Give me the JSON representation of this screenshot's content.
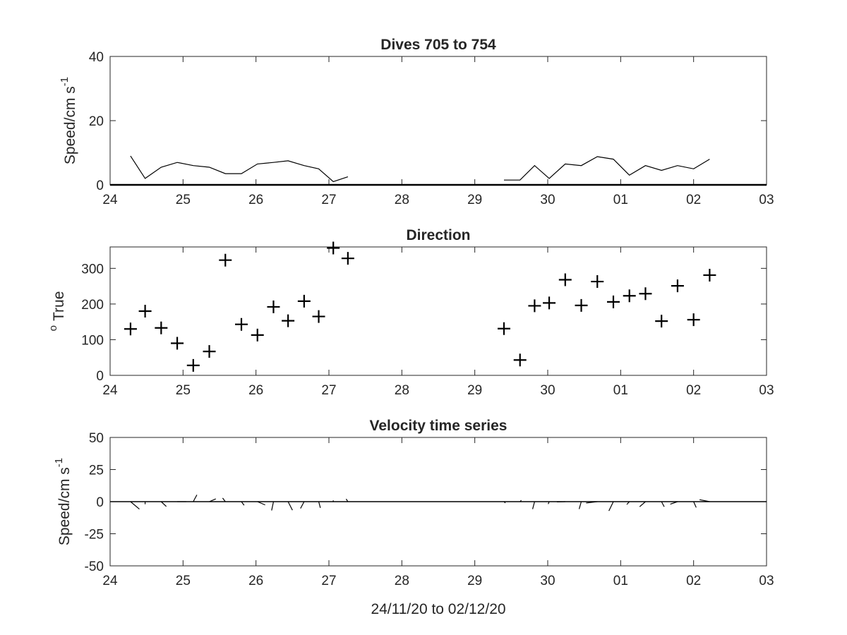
{
  "chart_data": [
    {
      "type": "line",
      "title": "Dives 705 to 754",
      "ylabel": "Speed/cm s",
      "ylabel_superscript": "-1",
      "xlim": [
        24,
        33
      ],
      "ylim": [
        0,
        40
      ],
      "xtick_labels": [
        "24",
        "25",
        "26",
        "27",
        "28",
        "29",
        "30",
        "01",
        "02",
        "03"
      ],
      "ytick_labels": [
        "0",
        "20",
        "40"
      ],
      "segments": [
        {
          "x": [
            24.28,
            24.48,
            24.7,
            24.92,
            25.14,
            25.36,
            25.58,
            25.8,
            26.02,
            26.24,
            26.44,
            26.66,
            26.86,
            27.06,
            27.26
          ],
          "y": [
            9,
            2,
            5.5,
            7,
            6,
            5.5,
            3.5,
            3.5,
            6.5,
            7,
            7.5,
            6,
            5,
            1,
            2.5
          ]
        },
        {
          "x": [
            29.4,
            29.62,
            29.82,
            30.02,
            30.24,
            30.46,
            30.68,
            30.9,
            31.12,
            31.34,
            31.56,
            31.78,
            32.0,
            32.22
          ],
          "y": [
            1.5,
            1.5,
            6,
            2,
            6.5,
            6,
            8.8,
            8,
            3,
            6,
            4.5,
            6,
            5,
            8
          ]
        }
      ]
    },
    {
      "type": "scatter",
      "title": "Direction",
      "ylabel": "True",
      "ylabel_superscript": "o",
      "xlim": [
        24,
        33
      ],
      "ylim": [
        0,
        360
      ],
      "xtick_labels": [
        "24",
        "25",
        "26",
        "27",
        "28",
        "29",
        "30",
        "01",
        "02",
        "03"
      ],
      "ytick_labels": [
        "0",
        "100",
        "200",
        "300"
      ],
      "x": [
        24.28,
        24.48,
        24.7,
        24.92,
        25.14,
        25.36,
        25.58,
        25.8,
        26.02,
        26.24,
        26.44,
        26.66,
        26.86,
        27.06,
        27.26,
        29.4,
        29.62,
        29.82,
        30.02,
        30.24,
        30.46,
        30.68,
        30.9,
        31.12,
        31.34,
        31.56,
        31.78,
        32.0,
        32.22
      ],
      "y": [
        130,
        180,
        133,
        90,
        28,
        67,
        323,
        143,
        113,
        192,
        153,
        208,
        165,
        357,
        328,
        131,
        43,
        195,
        203,
        268,
        196,
        263,
        206,
        223,
        229,
        152,
        251,
        156,
        281
      ]
    },
    {
      "type": "line",
      "subtype": "stick vectors",
      "title": "Velocity time series",
      "ylabel": "Speed/cm s",
      "ylabel_superscript": "-1",
      "xlabel": "24/11/20 to 02/12/20",
      "xlim": [
        24,
        33
      ],
      "ylim": [
        -50,
        50
      ],
      "xtick_labels": [
        "24",
        "25",
        "26",
        "27",
        "28",
        "29",
        "30",
        "01",
        "02",
        "03"
      ],
      "ytick_labels": [
        "-50",
        "-25",
        "0",
        "25",
        "50"
      ],
      "x": [
        24.28,
        24.48,
        24.7,
        24.92,
        25.14,
        25.36,
        25.58,
        25.8,
        26.02,
        26.24,
        26.44,
        26.66,
        26.86,
        27.06,
        27.26,
        29.4,
        29.62,
        29.82,
        30.02,
        30.24,
        30.46,
        30.68,
        30.9,
        31.12,
        31.34,
        31.56,
        31.78,
        32.0,
        32.22
      ],
      "speed": [
        9,
        2,
        5.5,
        7,
        6,
        5.5,
        3.5,
        3.5,
        6.5,
        7,
        7.5,
        6,
        5,
        1,
        2.5,
        1.5,
        1.5,
        6,
        2,
        6.5,
        6,
        8.8,
        8,
        3,
        6,
        4.5,
        6,
        5,
        8
      ],
      "direction": [
        130,
        180,
        133,
        90,
        28,
        67,
        323,
        143,
        113,
        192,
        153,
        208,
        165,
        357,
        328,
        131,
        43,
        195,
        203,
        268,
        196,
        263,
        206,
        223,
        229,
        152,
        251,
        156,
        281
      ]
    }
  ]
}
